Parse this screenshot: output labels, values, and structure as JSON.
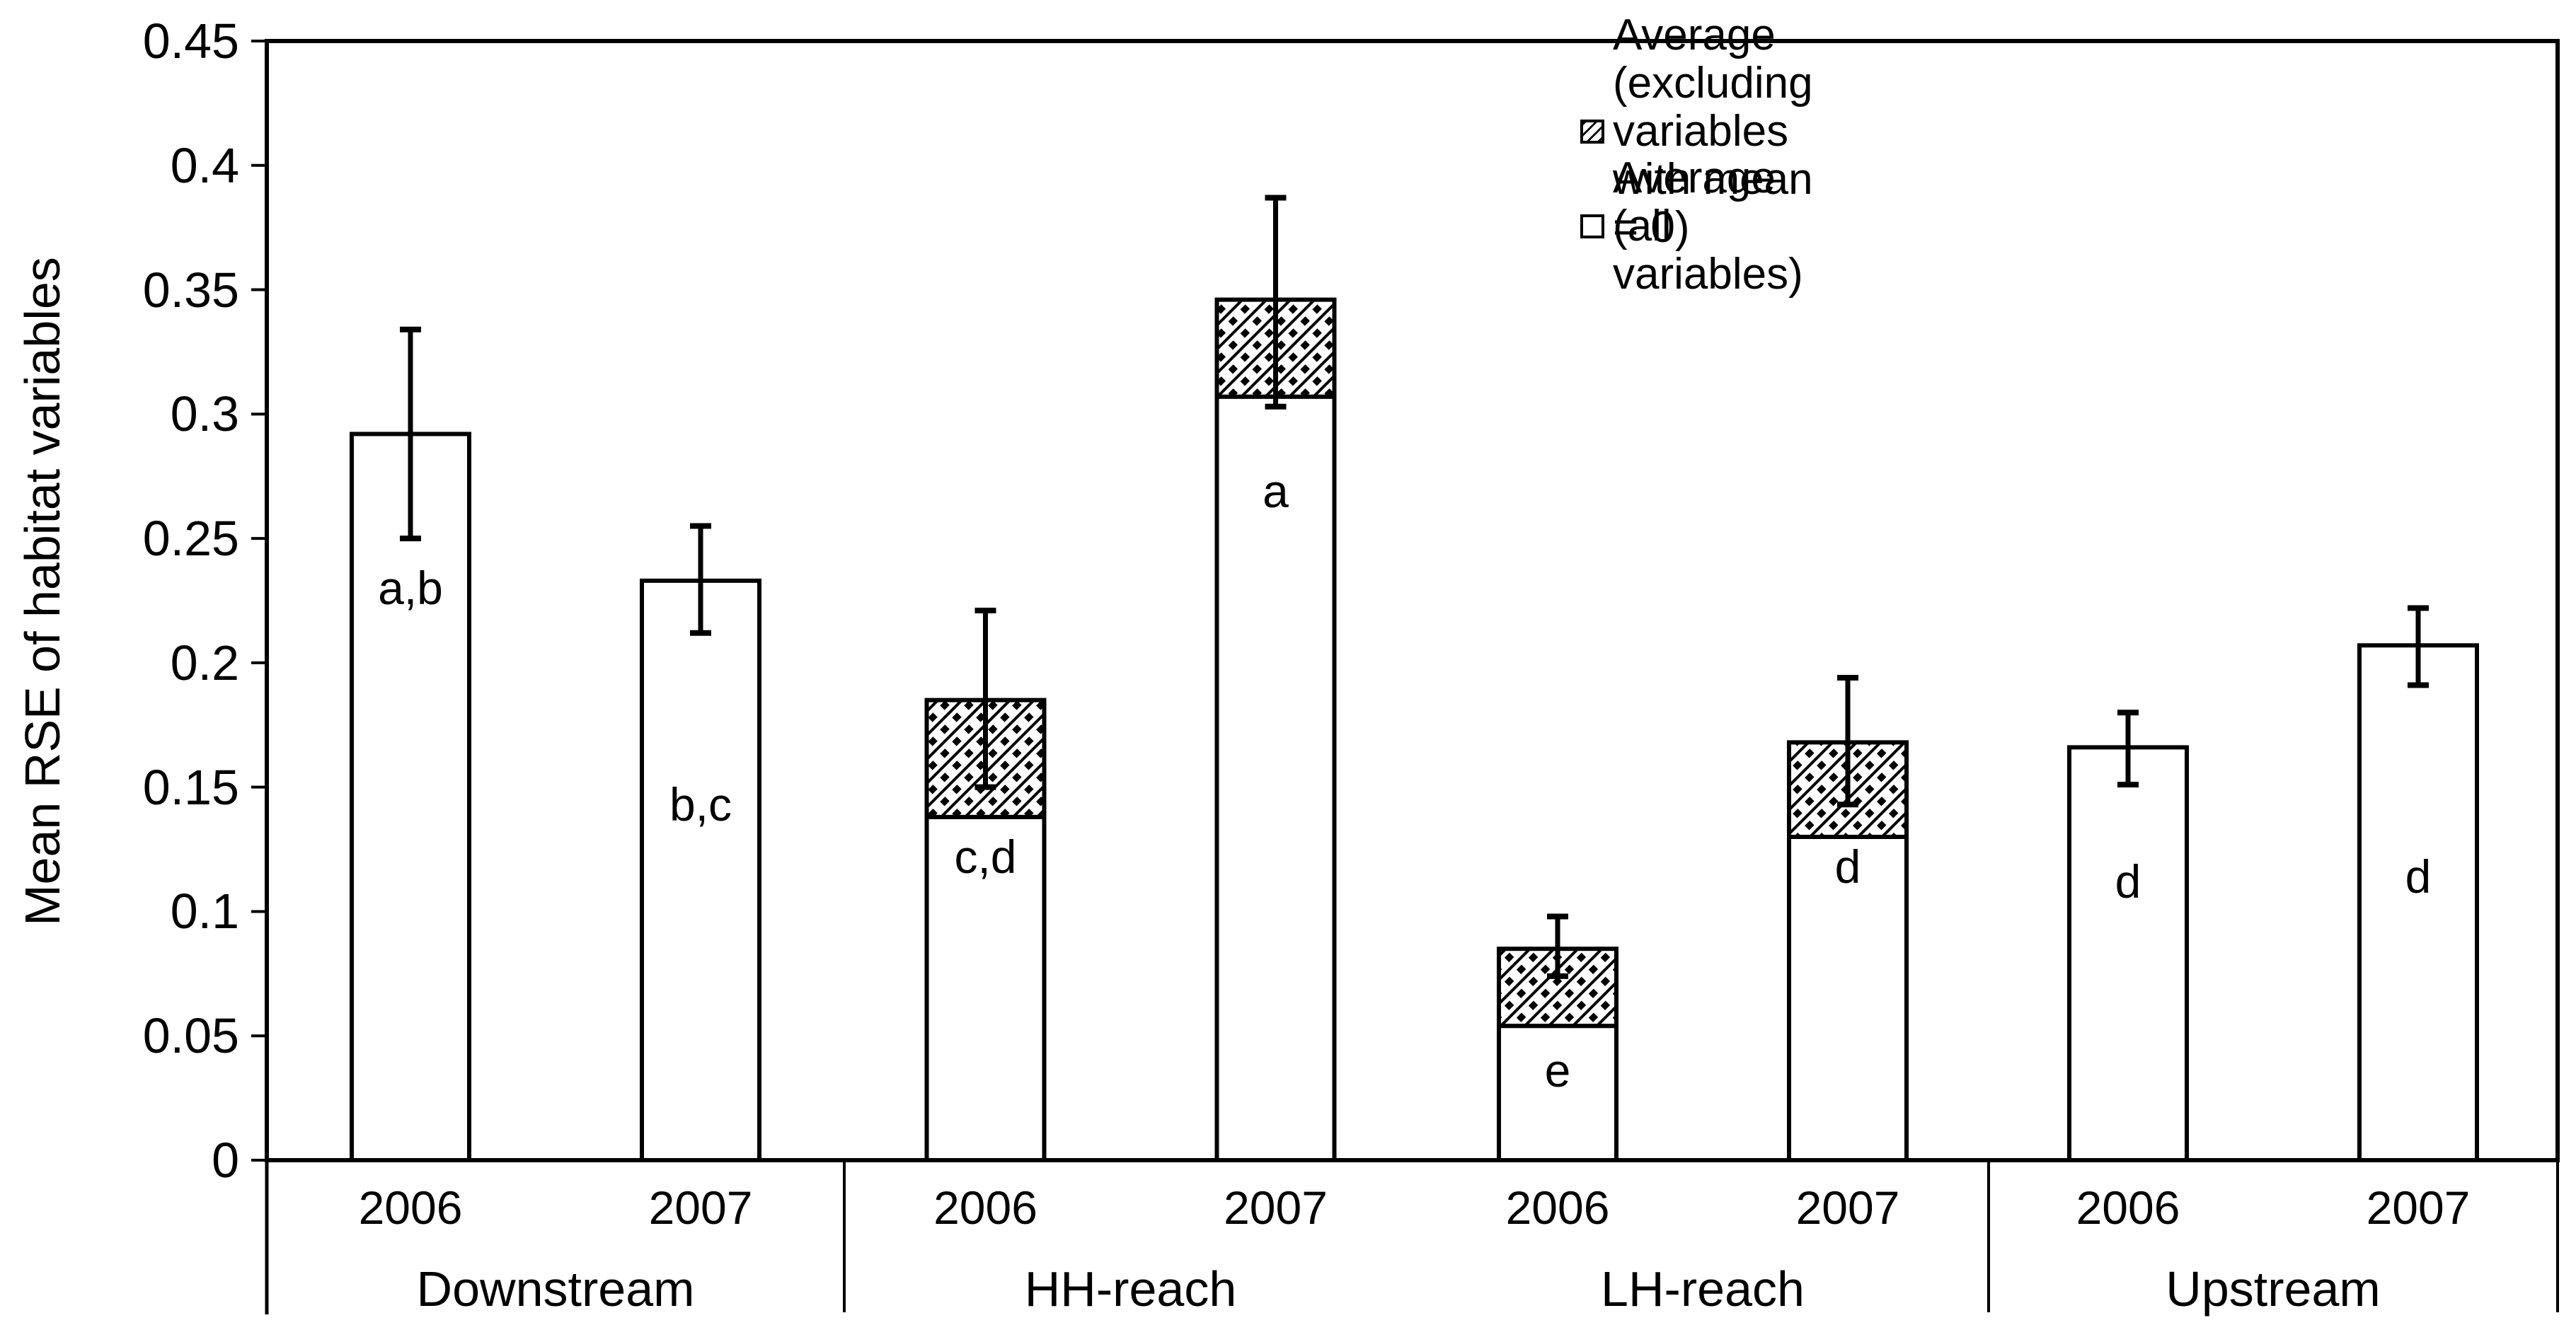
{
  "figure": {
    "background": "#ffffff",
    "ink": "#000000"
  },
  "chart_data": {
    "type": "bar",
    "title": "",
    "xlabel": "",
    "ylabel": "Mean RSE of habitat variables",
    "ylim": [
      0,
      0.45
    ],
    "ytick_step": 0.05,
    "grid": false,
    "legend_position": "top-right-inside",
    "yticks": [
      {
        "value": 0.45,
        "label": "0.45"
      },
      {
        "value": 0.4,
        "label": "0.4"
      },
      {
        "value": 0.35,
        "label": "0.35"
      },
      {
        "value": 0.3,
        "label": "0.3"
      },
      {
        "value": 0.25,
        "label": "0.25"
      },
      {
        "value": 0.2,
        "label": "0.2"
      },
      {
        "value": 0.15,
        "label": "0.15"
      },
      {
        "value": 0.1,
        "label": "0.1"
      },
      {
        "value": 0.05,
        "label": "0.05"
      },
      {
        "value": 0,
        "label": "0"
      }
    ],
    "legend": [
      {
        "label": "Average (excluding variables with mean = 0)",
        "style": "hatched"
      },
      {
        "label": "Average (all variables)",
        "style": "plain"
      }
    ],
    "groups": [
      {
        "label": "Downstream",
        "bars": [
          {
            "year": "2006",
            "all_variables": 0.292,
            "excluding_zero_mean": 0.292,
            "hatched_segment": false,
            "err_low": 0.25,
            "err_high": 0.334,
            "sig_letters": "a,b",
            "letter_value_y": 0.23
          },
          {
            "year": "2007",
            "all_variables": 0.233,
            "excluding_zero_mean": 0.233,
            "hatched_segment": false,
            "err_low": 0.212,
            "err_high": 0.255,
            "sig_letters": "b,c",
            "letter_value_y": 0.143
          }
        ]
      },
      {
        "label": "HH-reach",
        "bars": [
          {
            "year": "2006",
            "all_variables": 0.138,
            "excluding_zero_mean": 0.185,
            "hatched_segment": true,
            "err_low": 0.15,
            "err_high": 0.221,
            "sig_letters": "c,d",
            "letter_value_y": 0.122
          },
          {
            "year": "2007",
            "all_variables": 0.307,
            "excluding_zero_mean": 0.346,
            "hatched_segment": true,
            "err_low": 0.303,
            "err_high": 0.387,
            "sig_letters": "a",
            "letter_value_y": 0.269
          }
        ]
      },
      {
        "label": "LH-reach",
        "bars": [
          {
            "year": "2006",
            "all_variables": 0.054,
            "excluding_zero_mean": 0.085,
            "hatched_segment": true,
            "err_low": 0.074,
            "err_high": 0.098,
            "sig_letters": "e",
            "letter_value_y": 0.036
          },
          {
            "year": "2007",
            "all_variables": 0.13,
            "excluding_zero_mean": 0.168,
            "hatched_segment": true,
            "err_low": 0.143,
            "err_high": 0.194,
            "sig_letters": "d",
            "letter_value_y": 0.118
          }
        ]
      },
      {
        "label": "Upstream",
        "bars": [
          {
            "year": "2006",
            "all_variables": 0.166,
            "excluding_zero_mean": 0.166,
            "hatched_segment": false,
            "err_low": 0.151,
            "err_high": 0.18,
            "sig_letters": "d",
            "letter_value_y": 0.112
          },
          {
            "year": "2007",
            "all_variables": 0.207,
            "excluding_zero_mean": 0.207,
            "hatched_segment": false,
            "err_low": 0.191,
            "err_high": 0.222,
            "sig_letters": "d",
            "letter_value_y": 0.114
          }
        ]
      }
    ]
  }
}
